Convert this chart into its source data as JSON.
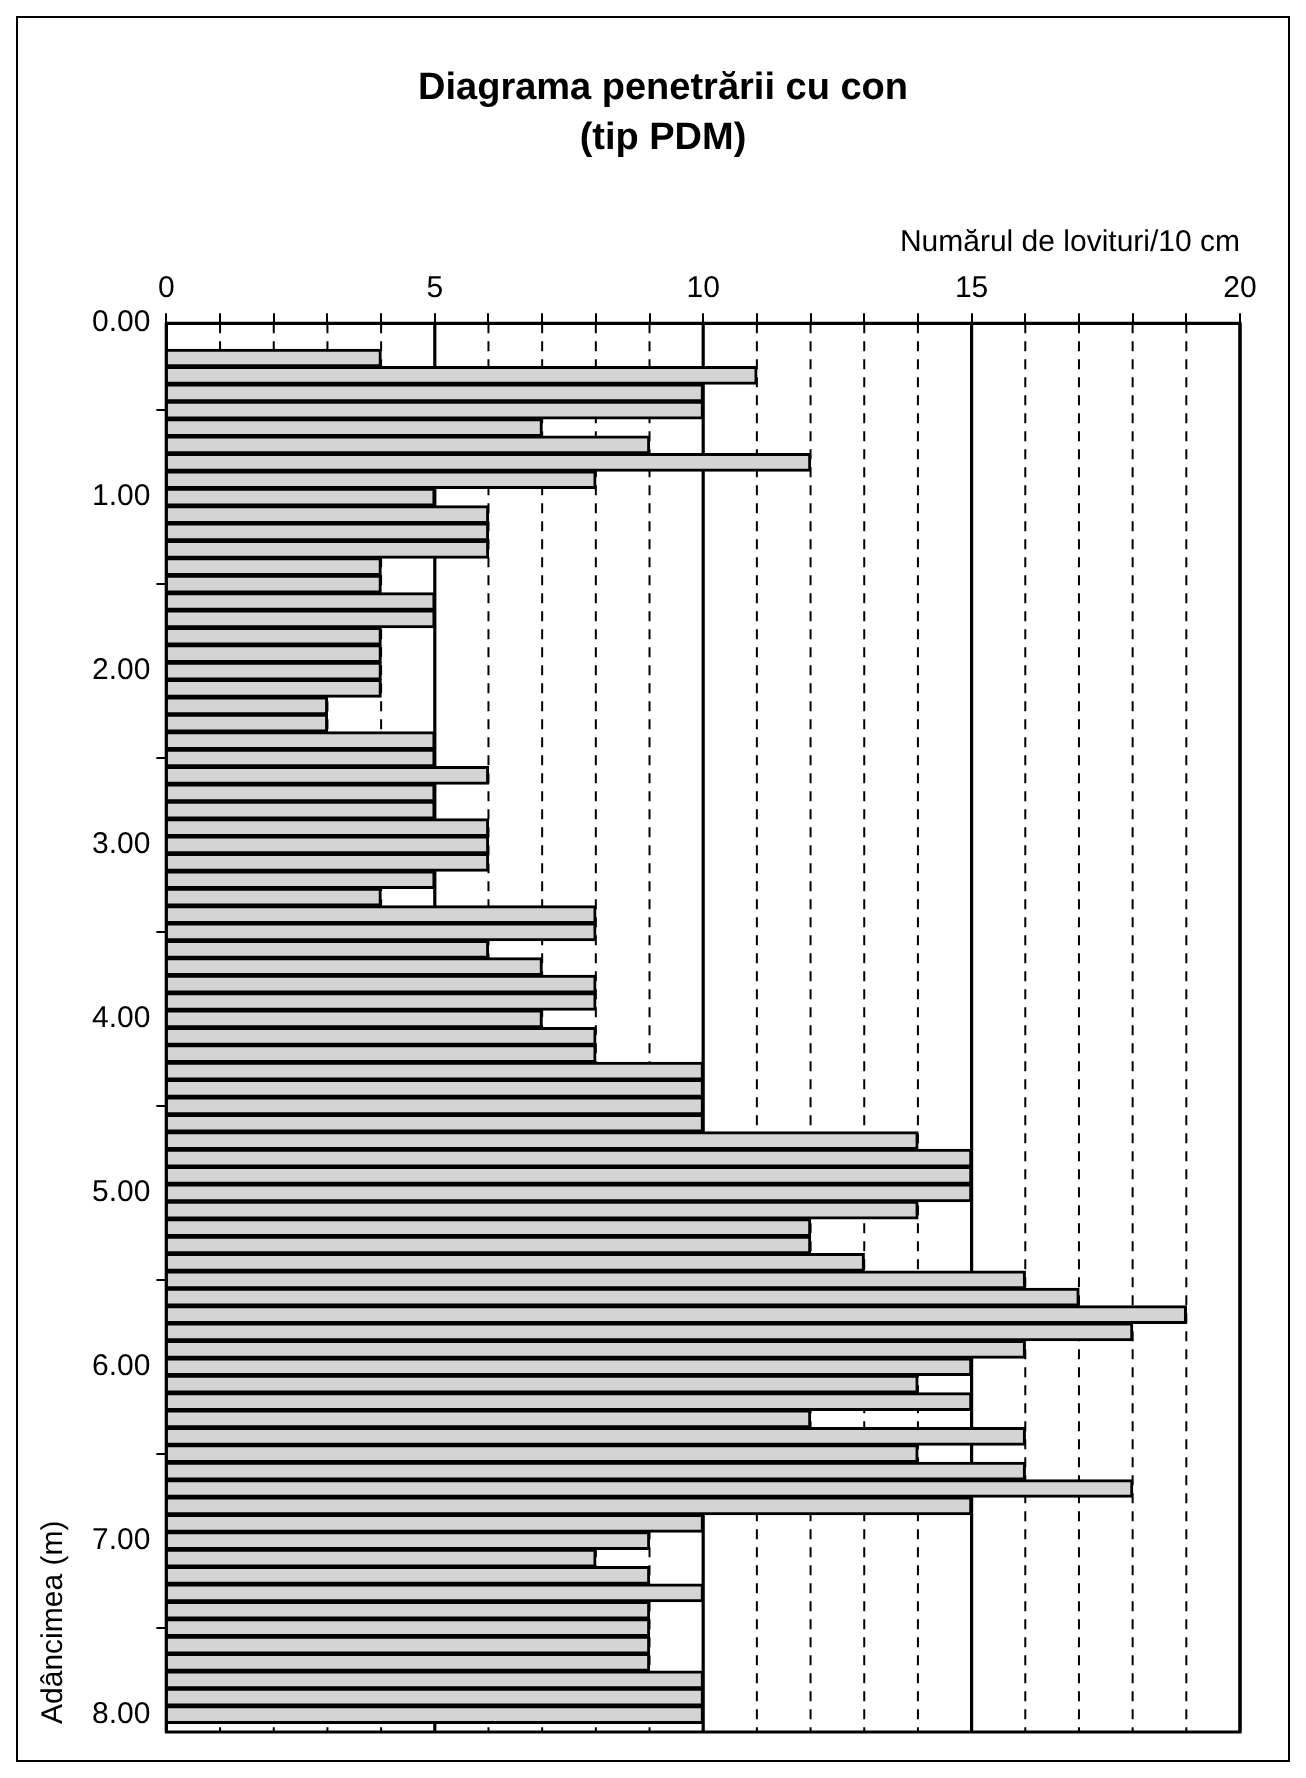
{
  "chart_data": {
    "type": "bar",
    "orientation": "horizontal",
    "title": "Diagrama penetrării cu con",
    "subtitle": "(tip PDM)",
    "xlabel": "Numărul de lovituri/10 cm",
    "ylabel": "Adâncimea (m)",
    "x": [
      0.2,
      0.3,
      0.4,
      0.5,
      0.6,
      0.7,
      0.8,
      0.9,
      1.0,
      1.1,
      1.2,
      1.3,
      1.4,
      1.5,
      1.6,
      1.7,
      1.8,
      1.9,
      2.0,
      2.1,
      2.2,
      2.3,
      2.4,
      2.5,
      2.6,
      2.7,
      2.8,
      2.9,
      3.0,
      3.1,
      3.2,
      3.3,
      3.4,
      3.5,
      3.6,
      3.7,
      3.8,
      3.9,
      4.0,
      4.1,
      4.2,
      4.3,
      4.4,
      4.5,
      4.6,
      4.7,
      4.8,
      4.9,
      5.0,
      5.1,
      5.2,
      5.3,
      5.4,
      5.5,
      5.6,
      5.7,
      5.8,
      5.9,
      6.0,
      6.1,
      6.2,
      6.3,
      6.4,
      6.5,
      6.6,
      6.7,
      6.8,
      6.9,
      7.0,
      7.1,
      7.2,
      7.3,
      7.4,
      7.5,
      7.6,
      7.7,
      7.8,
      7.9,
      8.0
    ],
    "values": [
      4,
      11,
      10,
      10,
      7,
      9,
      12,
      8,
      5,
      6,
      6,
      6,
      4,
      4,
      5,
      5,
      4,
      4,
      4,
      4,
      3,
      3,
      5,
      5,
      6,
      5,
      5,
      6,
      6,
      6,
      5,
      4,
      8,
      8,
      6,
      7,
      8,
      8,
      7,
      8,
      8,
      10,
      10,
      10,
      10,
      14,
      15,
      15,
      15,
      14,
      12,
      12,
      13,
      16,
      17,
      19,
      18,
      16,
      15,
      14,
      15,
      12,
      16,
      14,
      16,
      18,
      15,
      10,
      9,
      8,
      9,
      10,
      9,
      9,
      9,
      9,
      10,
      10,
      10
    ],
    "color": "#d4d4d4",
    "xlim": [
      0,
      20
    ],
    "xticks": [
      0,
      {
        "value": 1,
        "label": null
      },
      {
        "value": 2,
        "label": null
      },
      {
        "value": 3,
        "label": null
      },
      {
        "value": 4,
        "label": null
      },
      5,
      {
        "value": 6,
        "label": null
      },
      {
        "value": 7,
        "label": null
      },
      {
        "value": 8,
        "label": null
      },
      {
        "value": 9,
        "label": null
      },
      10,
      {
        "value": 11,
        "label": null
      },
      {
        "value": 12,
        "label": null
      },
      {
        "value": 13,
        "label": null
      },
      {
        "value": 14,
        "label": null
      },
      15,
      {
        "value": 16,
        "label": null
      },
      {
        "value": 17,
        "label": null
      },
      {
        "value": 18,
        "label": null
      },
      {
        "value": 19,
        "label": null
      },
      20
    ],
    "ylim": [
      8.1,
      0
    ],
    "yticks": [
      {
        "value": 0,
        "label": "0.00"
      },
      {
        "value": 1,
        "label": "1.00"
      },
      {
        "value": 2,
        "label": "2.00"
      },
      {
        "value": 3,
        "label": "3.00"
      },
      {
        "value": 4,
        "label": "4.00"
      },
      {
        "value": 5,
        "label": "5.00"
      },
      {
        "value": 6,
        "label": "6.00"
      },
      {
        "value": 7,
        "label": "7.00"
      },
      {
        "value": 8,
        "label": "8.00"
      }
    ],
    "grid": "x",
    "legend": false
  }
}
